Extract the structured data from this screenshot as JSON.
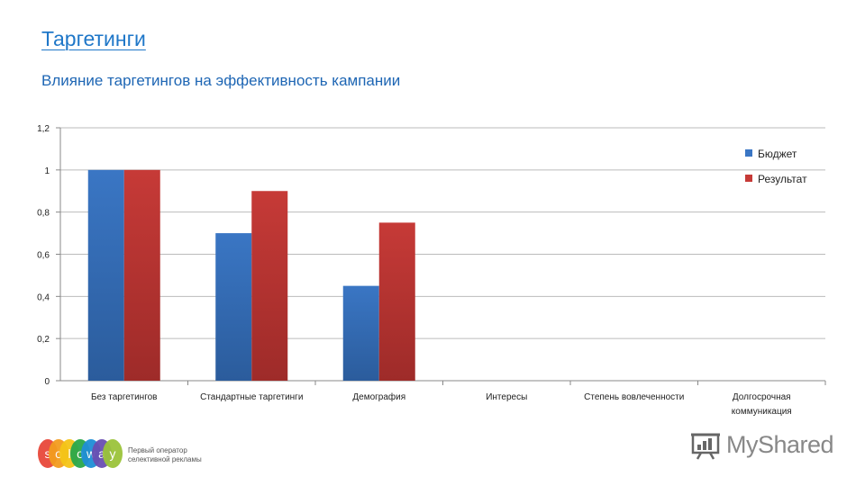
{
  "slide": {
    "title": "Таргетинги",
    "subtitle": "Влияние таргетингов на эффективность кампании"
  },
  "chart_data": {
    "type": "bar",
    "categories": [
      "Без таргетингов",
      "Стандартные таргетинги",
      "Демография",
      "Интересы",
      "Степень вовлеченности",
      "Долгосрочная коммуникация"
    ],
    "series": [
      {
        "name": "Бюджет",
        "values": [
          1,
          0.7,
          0.45,
          null,
          null,
          null
        ],
        "color": "#3a76c4"
      },
      {
        "name": "Результат",
        "values": [
          1,
          0.9,
          0.75,
          null,
          null,
          null
        ],
        "color": "#c63a37"
      }
    ],
    "ylim": [
      0,
      1.2
    ],
    "yticks": [
      "0",
      "0,2",
      "0,4",
      "0,6",
      "0,8",
      "1",
      "1,2"
    ],
    "grid": true,
    "legend_position": "top-right"
  },
  "branding": {
    "soloway_letters": [
      "s",
      "o",
      "l",
      "o",
      "w",
      "a",
      "y"
    ],
    "soloway_colors": [
      "#e8483a",
      "#f39c1f",
      "#f5c518",
      "#2aa84a",
      "#1f8fd6",
      "#6a4fb3",
      "#9bc43a"
    ],
    "soloway_tagline": "Первый оператор селективной рекламы",
    "myshared_text": "MyShared"
  }
}
